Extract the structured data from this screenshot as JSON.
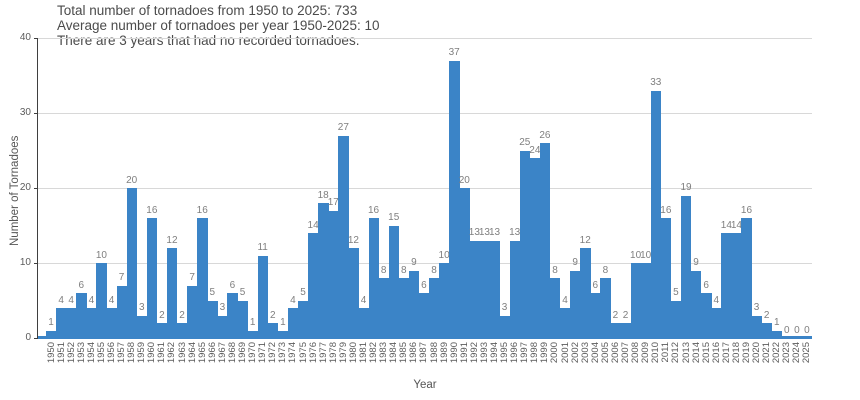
{
  "chart_data": {
    "type": "bar",
    "title_lines": [
      "Total number of tornadoes from 1950 to 2025: 733",
      "Average number of tornadoes per year 1950-2025: 10",
      "There are 3 years that had no recorded tornadoes."
    ],
    "xlabel": "Year",
    "ylabel": "Number of Tornadoes",
    "ylim": [
      0,
      40
    ],
    "yticks": [
      0,
      10,
      20,
      30,
      40
    ],
    "grid": "horizontal",
    "legend": "none",
    "bar_value_labels": true,
    "categories": [
      "1950",
      "1951",
      "1952",
      "1953",
      "1954",
      "1955",
      "1956",
      "1957",
      "1958",
      "1959",
      "1960",
      "1961",
      "1962",
      "1963",
      "1964",
      "1965",
      "1966",
      "1967",
      "1968",
      "1969",
      "1970",
      "1971",
      "1972",
      "1973",
      "1974",
      "1975",
      "1976",
      "1977",
      "1978",
      "1979",
      "1980",
      "1981",
      "1982",
      "1983",
      "1984",
      "1985",
      "1986",
      "1987",
      "1988",
      "1989",
      "1990",
      "1991",
      "1992",
      "1993",
      "1994",
      "1995",
      "1996",
      "1997",
      "1998",
      "1999",
      "2000",
      "2001",
      "2002",
      "2003",
      "2004",
      "2005",
      "2006",
      "2007",
      "2008",
      "2009",
      "2010",
      "2011",
      "2012",
      "2013",
      "2014",
      "2015",
      "2016",
      "2017",
      "2018",
      "2019",
      "2020",
      "2021",
      "2022",
      "2023",
      "2024",
      "2025"
    ],
    "values": [
      1,
      4,
      4,
      6,
      4,
      10,
      4,
      7,
      20,
      3,
      16,
      2,
      12,
      2,
      7,
      16,
      5,
      3,
      6,
      5,
      1,
      11,
      2,
      1,
      4,
      5,
      14,
      18,
      17,
      27,
      12,
      4,
      16,
      8,
      15,
      8,
      9,
      6,
      8,
      10,
      37,
      20,
      13,
      13,
      13,
      3,
      13,
      25,
      24,
      26,
      8,
      4,
      9,
      12,
      6,
      8,
      2,
      2,
      10,
      10,
      33,
      16,
      5,
      19,
      9,
      6,
      4,
      14,
      14,
      16,
      3,
      2,
      1,
      0,
      0,
      0
    ],
    "total_shown": 733,
    "average_shown": 10,
    "zero_years_count": 3
  },
  "colors": {
    "bar": "#3b84c7",
    "grid": "#d8d8d8",
    "axis_spine": "#3f3f3f",
    "baseline": "#3b84c7",
    "title_text": "#4b4b4b",
    "tick_text": "#5c5c5c",
    "value_label_text": "#7f7f7f",
    "background": "#ffffff"
  }
}
